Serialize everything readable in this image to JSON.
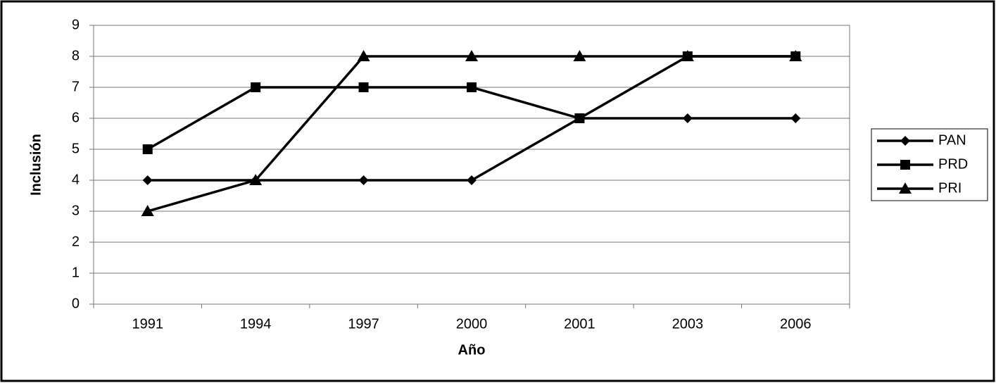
{
  "chart_data": {
    "type": "line",
    "y_label": "Inclusión",
    "x_label": "Año",
    "categories": [
      "1991",
      "1994",
      "1997",
      "2000",
      "2001",
      "2003",
      "2006"
    ],
    "series": [
      {
        "name": "PAN",
        "color": "#000000",
        "marker": "diamond",
        "values": [
          4,
          4,
          4,
          4,
          6,
          6,
          6
        ]
      },
      {
        "name": "PRD",
        "color": "#000000",
        "marker": "square",
        "values": [
          5,
          7,
          7,
          7,
          6,
          8,
          8
        ]
      },
      {
        "name": "PRI",
        "color": "#000000",
        "marker": "triangle",
        "values": [
          3,
          4,
          8,
          8,
          8,
          8,
          8
        ]
      }
    ],
    "ylim": [
      0,
      9
    ],
    "yticks": [
      0,
      1,
      2,
      3,
      4,
      5,
      6,
      7,
      8,
      9
    ],
    "grid": true,
    "legend": "right"
  }
}
